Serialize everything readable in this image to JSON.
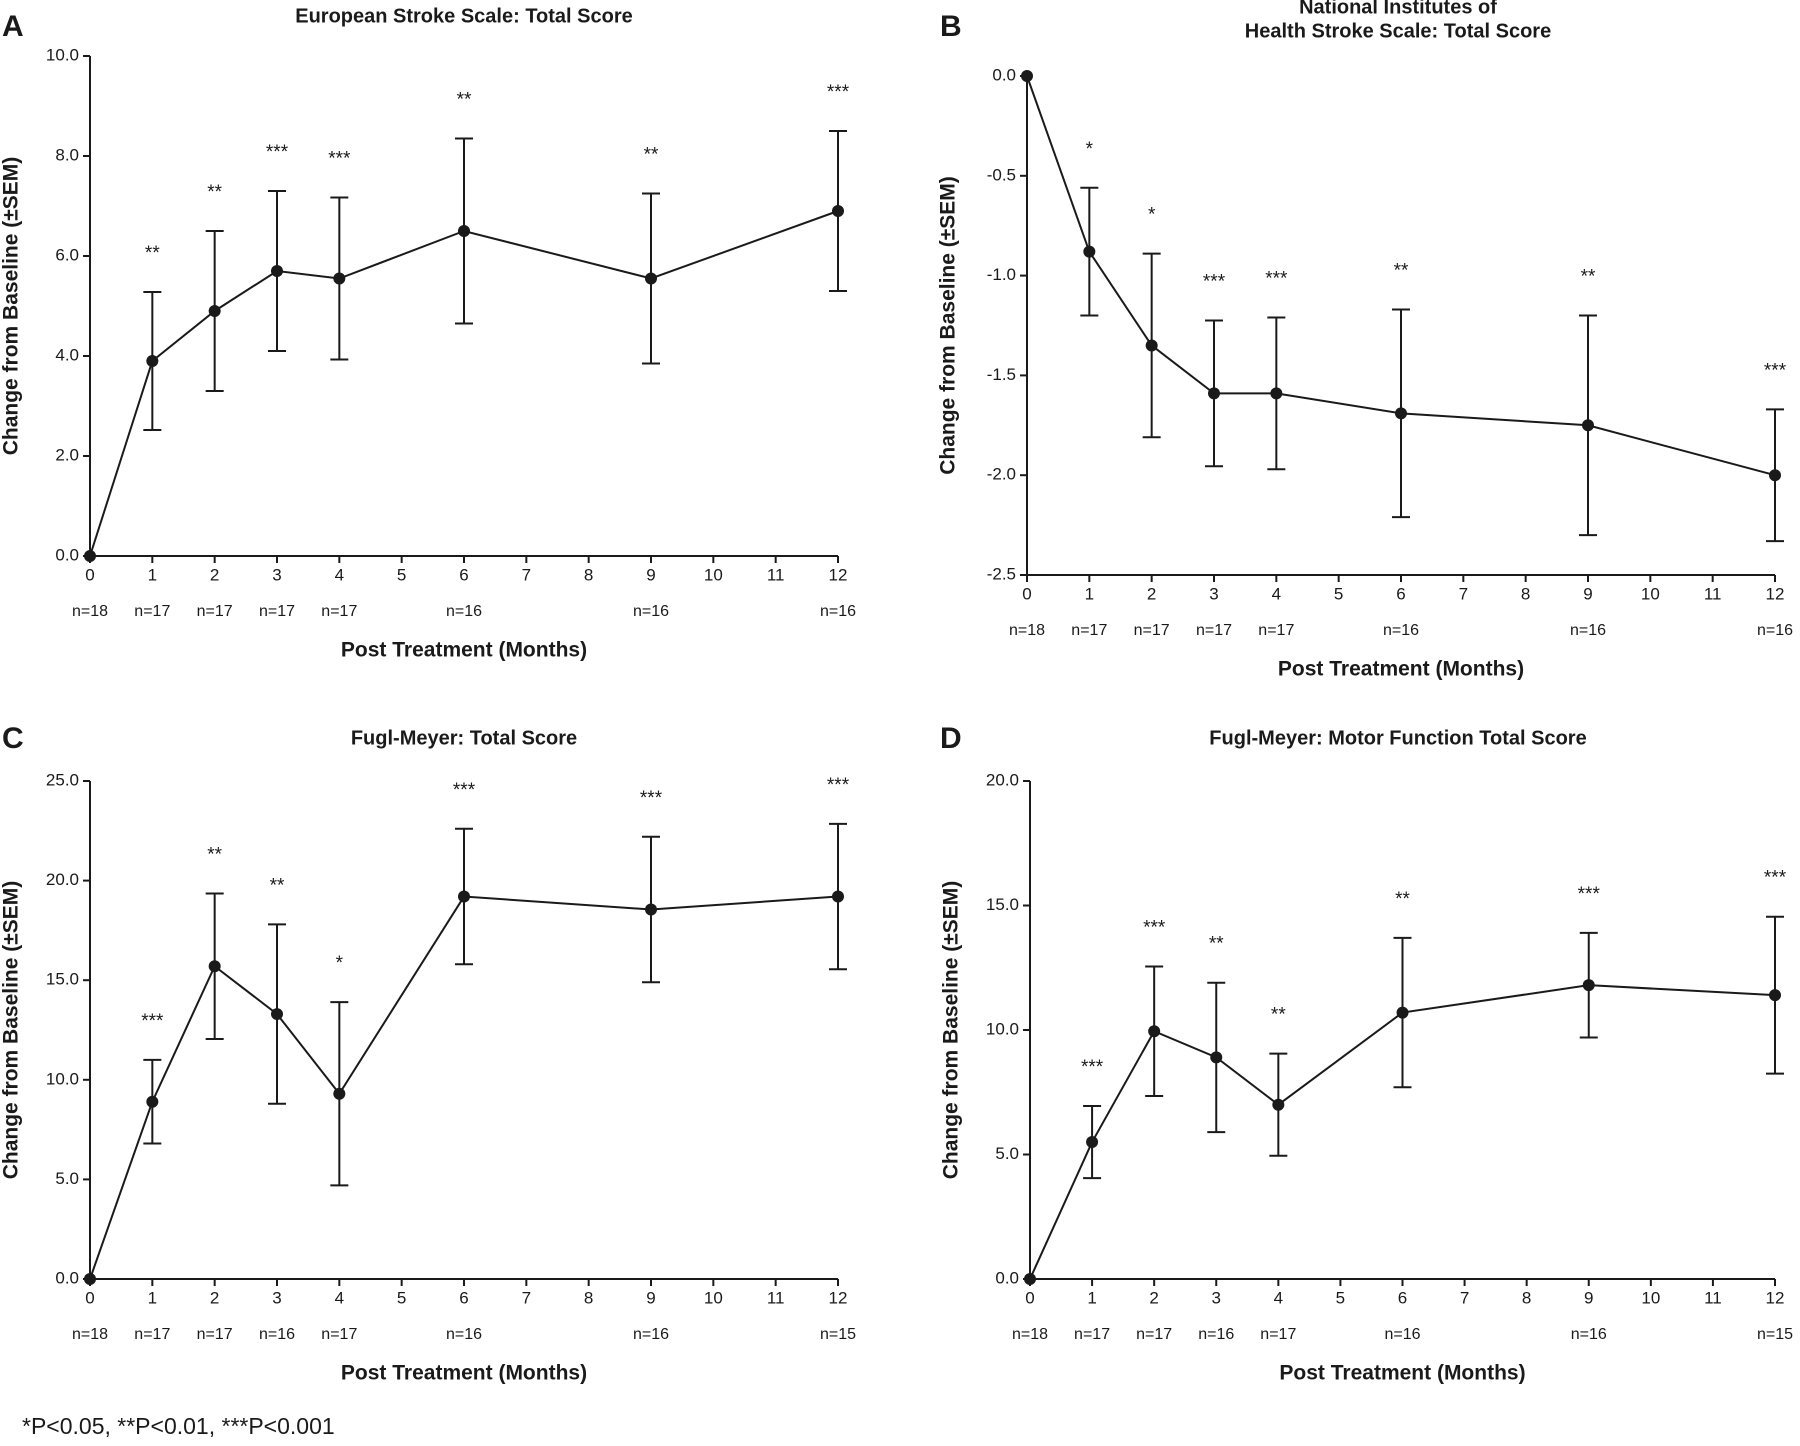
{
  "chart_data": [
    {
      "type": "line",
      "panel": "A",
      "title": "European Stroke Scale: Total Score",
      "x_label": "Post Treatment (Months)",
      "y_label": "Change from Baseline (±SEM)",
      "x": [
        0,
        1,
        2,
        3,
        4,
        6,
        9,
        12
      ],
      "values": [
        0,
        3.9,
        4.9,
        5.7,
        5.55,
        6.5,
        5.55,
        6.9
      ],
      "errors": [
        null,
        1.38,
        1.6,
        1.6,
        1.62,
        1.85,
        1.7,
        1.6
      ],
      "significance": [
        null,
        "**",
        "**",
        "***",
        "***",
        "**",
        "**",
        "***"
      ],
      "n_labels": [
        "n=18",
        "n=17",
        "n=17",
        "n=17",
        "n=17",
        "n=16",
        "n=16",
        "n=16"
      ],
      "color": "#1a1a1a",
      "xlim": [
        0,
        12
      ],
      "xticks": [
        0,
        1,
        2,
        3,
        4,
        5,
        6,
        7,
        8,
        9,
        10,
        11,
        12
      ],
      "ylim": [
        0,
        10
      ],
      "yticks": [
        {
          "value": 0,
          "label": "0.0"
        },
        {
          "value": 2,
          "label": "2.0"
        },
        {
          "value": 4,
          "label": "4.0"
        },
        {
          "value": 6,
          "label": "6.0"
        },
        {
          "value": 8,
          "label": "8.0"
        },
        {
          "value": 10,
          "label": "10.0"
        }
      ]
    },
    {
      "type": "line",
      "panel": "B",
      "title": [
        "National Institutes of",
        "Health Stroke Scale: Total Score"
      ],
      "x_label": "Post Treatment (Months)",
      "y_label": "Change from Baseline (±SEM)",
      "x": [
        0,
        1,
        2,
        3,
        4,
        6,
        9,
        12
      ],
      "values": [
        0,
        -0.88,
        -1.35,
        -1.59,
        -1.59,
        -1.69,
        -1.75,
        -2.0
      ],
      "errors": [
        null,
        0.32,
        0.46,
        0.365,
        0.38,
        0.52,
        0.55,
        0.33
      ],
      "significance": [
        null,
        "*",
        "*",
        "***",
        "***",
        "**",
        "**",
        "***"
      ],
      "n_labels": [
        "n=18",
        "n=17",
        "n=17",
        "n=17",
        "n=17",
        "n=16",
        "n=16",
        "n=16"
      ],
      "color": "#1a1a1a",
      "xlim": [
        0,
        12
      ],
      "xticks": [
        0,
        1,
        2,
        3,
        4,
        5,
        6,
        7,
        8,
        9,
        10,
        11,
        12
      ],
      "ylim": [
        -2.5,
        0
      ],
      "yticks": [
        {
          "value": 0,
          "label": "0.0"
        },
        {
          "value": -0.5,
          "label": "-0.5"
        },
        {
          "value": -1,
          "label": "-1.0"
        },
        {
          "value": -1.5,
          "label": "-1.5"
        },
        {
          "value": -2,
          "label": "-2.0"
        },
        {
          "value": -2.5,
          "label": "-2.5"
        }
      ]
    },
    {
      "type": "line",
      "panel": "C",
      "title": "Fugl-Meyer: Total Score",
      "x_label": "Post Treatment (Months)",
      "y_label": "Change from Baseline (±SEM)",
      "x": [
        0,
        1,
        2,
        3,
        4,
        6,
        9,
        12
      ],
      "values": [
        0,
        8.9,
        15.7,
        13.3,
        9.3,
        19.2,
        18.55,
        19.2
      ],
      "errors": [
        null,
        2.1,
        3.65,
        4.5,
        4.6,
        3.4,
        3.65,
        3.65
      ],
      "significance": [
        null,
        "***",
        "**",
        "**",
        "*",
        "***",
        "***",
        "***"
      ],
      "n_labels": [
        "n=18",
        "n=17",
        "n=17",
        "n=16",
        "n=17",
        "n=16",
        "n=16",
        "n=15"
      ],
      "color": "#1a1a1a",
      "xlim": [
        0,
        12
      ],
      "xticks": [
        0,
        1,
        2,
        3,
        4,
        5,
        6,
        7,
        8,
        9,
        10,
        11,
        12
      ],
      "ylim": [
        0,
        25
      ],
      "yticks": [
        {
          "value": 0,
          "label": "0.0"
        },
        {
          "value": 5,
          "label": "5.0"
        },
        {
          "value": 10,
          "label": "10.0"
        },
        {
          "value": 15,
          "label": "15.0"
        },
        {
          "value": 20,
          "label": "20.0"
        },
        {
          "value": 25,
          "label": "25.0"
        }
      ]
    },
    {
      "type": "line",
      "panel": "D",
      "title": "Fugl-Meyer: Motor Function Total Score",
      "x_label": "Post Treatment (Months)",
      "y_label": "Change from Baseline (±SEM)",
      "x": [
        0,
        1,
        2,
        3,
        4,
        6,
        9,
        12
      ],
      "values": [
        0,
        5.5,
        9.95,
        8.9,
        7.0,
        10.7,
        11.8,
        11.4
      ],
      "errors": [
        null,
        1.45,
        2.6,
        3.0,
        2.05,
        3.0,
        2.1,
        3.15
      ],
      "significance": [
        null,
        "***",
        "***",
        "**",
        "**",
        "**",
        "***",
        "***"
      ],
      "n_labels": [
        "n=18",
        "n=17",
        "n=17",
        "n=16",
        "n=17",
        "n=16",
        "n=16",
        "n=15"
      ],
      "color": "#1a1a1a",
      "xlim": [
        0,
        12
      ],
      "xticks": [
        0,
        1,
        2,
        3,
        4,
        5,
        6,
        7,
        8,
        9,
        10,
        11,
        12
      ],
      "ylim": [
        0,
        20
      ],
      "yticks": [
        {
          "value": 0,
          "label": "0.0"
        },
        {
          "value": 5,
          "label": "5.0"
        },
        {
          "value": 10,
          "label": "10.0"
        },
        {
          "value": 15,
          "label": "15.0"
        },
        {
          "value": 20,
          "label": "20.0"
        }
      ]
    }
  ],
  "footnote": "*P<0.05, **P<0.01, ***P<0.001"
}
